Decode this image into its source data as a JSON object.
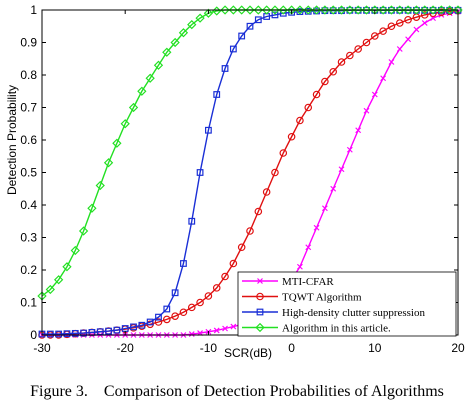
{
  "chart_data": {
    "type": "line",
    "title": "",
    "xlabel": "SCR(dB)",
    "ylabel": "Detection Probability",
    "xlim": [
      -30,
      20
    ],
    "ylim": [
      0,
      1
    ],
    "xticks": [
      -30,
      -20,
      -10,
      0,
      10,
      20
    ],
    "yticks": [
      0,
      0.1,
      0.2,
      0.3,
      0.4,
      0.5,
      0.6,
      0.7,
      0.8,
      0.9,
      1
    ],
    "xtick_labels": [
      "-30",
      "-20",
      "-10",
      "0",
      "10",
      "20"
    ],
    "ytick_labels": [
      "0",
      "0.1",
      "0.2",
      "0.3",
      "0.4",
      "0.5",
      "0.6",
      "0.7",
      "0.8",
      "0.9",
      "1"
    ],
    "legend_position": "bottom-right",
    "grid": false,
    "series": [
      {
        "name": "MTI-CFAR",
        "color": "#ff00ff",
        "marker": "x",
        "x": [
          -30,
          -29,
          -28,
          -27,
          -26,
          -25,
          -24,
          -23,
          -22,
          -21,
          -20,
          -19,
          -18,
          -17,
          -16,
          -15,
          -14,
          -13,
          -12,
          -11,
          -10,
          -9,
          -8,
          -7,
          -6,
          -5,
          -4,
          -3,
          -2,
          -1,
          0,
          1,
          2,
          3,
          4,
          5,
          6,
          7,
          8,
          9,
          10,
          11,
          12,
          13,
          14,
          15,
          16,
          17,
          18,
          19,
          20
        ],
        "values": [
          0,
          0,
          0,
          0,
          0,
          0,
          0,
          0,
          0,
          0,
          0,
          0,
          0,
          0,
          0,
          0,
          0,
          0,
          0.003,
          0.006,
          0.01,
          0.014,
          0.02,
          0.026,
          0.032,
          0.04,
          0.055,
          0.075,
          0.1,
          0.13,
          0.17,
          0.21,
          0.27,
          0.33,
          0.39,
          0.45,
          0.51,
          0.57,
          0.63,
          0.69,
          0.74,
          0.79,
          0.84,
          0.88,
          0.91,
          0.94,
          0.96,
          0.975,
          0.985,
          0.99,
          0.995
        ]
      },
      {
        "name": "TQWT Algorithm",
        "color": "#e01010",
        "marker": "circle",
        "x": [
          -30,
          -29,
          -28,
          -27,
          -26,
          -25,
          -24,
          -23,
          -22,
          -21,
          -20,
          -19,
          -18,
          -17,
          -16,
          -15,
          -14,
          -13,
          -12,
          -11,
          -10,
          -9,
          -8,
          -7,
          -6,
          -5,
          -4,
          -3,
          -2,
          -1,
          0,
          1,
          2,
          3,
          4,
          5,
          6,
          7,
          8,
          9,
          10,
          11,
          12,
          13,
          14,
          15,
          16,
          17,
          18,
          19,
          20
        ],
        "values": [
          0,
          0,
          0,
          0.002,
          0.004,
          0.006,
          0.008,
          0.01,
          0.012,
          0.015,
          0.018,
          0.022,
          0.027,
          0.033,
          0.04,
          0.048,
          0.058,
          0.07,
          0.085,
          0.1,
          0.12,
          0.145,
          0.18,
          0.22,
          0.27,
          0.32,
          0.38,
          0.44,
          0.5,
          0.56,
          0.61,
          0.66,
          0.7,
          0.74,
          0.78,
          0.81,
          0.84,
          0.86,
          0.88,
          0.9,
          0.92,
          0.935,
          0.95,
          0.96,
          0.97,
          0.978,
          0.985,
          0.99,
          0.993,
          0.996,
          0.998
        ]
      },
      {
        "name": "High-density clutter suppression",
        "color": "#1a2fd6",
        "marker": "square",
        "x": [
          -30,
          -29,
          -28,
          -27,
          -26,
          -25,
          -24,
          -23,
          -22,
          -21,
          -20,
          -19,
          -18,
          -17,
          -16,
          -15,
          -14,
          -13,
          -12,
          -11,
          -10,
          -9,
          -8,
          -7,
          -6,
          -5,
          -4,
          -3,
          -2,
          -1,
          0,
          1,
          2,
          3,
          4,
          5,
          6,
          7,
          8,
          9,
          10,
          11,
          12,
          13,
          14,
          15,
          16,
          17,
          18,
          19,
          20
        ],
        "values": [
          0.003,
          0.003,
          0.003,
          0.004,
          0.005,
          0.006,
          0.008,
          0.01,
          0.012,
          0.015,
          0.02,
          0.025,
          0.03,
          0.04,
          0.055,
          0.08,
          0.13,
          0.22,
          0.35,
          0.5,
          0.63,
          0.74,
          0.82,
          0.88,
          0.92,
          0.95,
          0.97,
          0.98,
          0.985,
          0.99,
          0.993,
          0.995,
          0.996,
          0.997,
          0.998,
          0.998,
          0.998,
          0.999,
          0.999,
          0.999,
          0.999,
          0.999,
          0.999,
          0.999,
          0.999,
          0.999,
          0.999,
          0.999,
          0.999,
          0.999,
          0.999
        ]
      },
      {
        "name": "Algorithm in this article.",
        "color": "#22e022",
        "marker": "diamond",
        "x": [
          -30,
          -29,
          -28,
          -27,
          -26,
          -25,
          -24,
          -23,
          -22,
          -21,
          -20,
          -19,
          -18,
          -17,
          -16,
          -15,
          -14,
          -13,
          -12,
          -11,
          -10,
          -9,
          -8,
          -7,
          -6,
          -5,
          -4,
          -3,
          -2,
          -1,
          0,
          1,
          2,
          3,
          4,
          5,
          6,
          7,
          8,
          9,
          10,
          11,
          12,
          13,
          14,
          15,
          16,
          17,
          18,
          19,
          20
        ],
        "values": [
          0.12,
          0.14,
          0.17,
          0.21,
          0.26,
          0.32,
          0.39,
          0.46,
          0.53,
          0.59,
          0.65,
          0.7,
          0.75,
          0.79,
          0.83,
          0.87,
          0.9,
          0.93,
          0.955,
          0.975,
          0.99,
          0.997,
          1,
          1,
          1,
          1,
          1,
          1,
          1,
          1,
          1,
          1,
          1,
          1,
          1,
          1,
          1,
          1,
          1,
          1,
          1,
          1,
          1,
          1,
          1,
          1,
          1,
          1,
          1,
          1,
          1
        ]
      }
    ]
  },
  "caption": "Figure 3.    Comparison of Detection Probabilities of Algorithms"
}
